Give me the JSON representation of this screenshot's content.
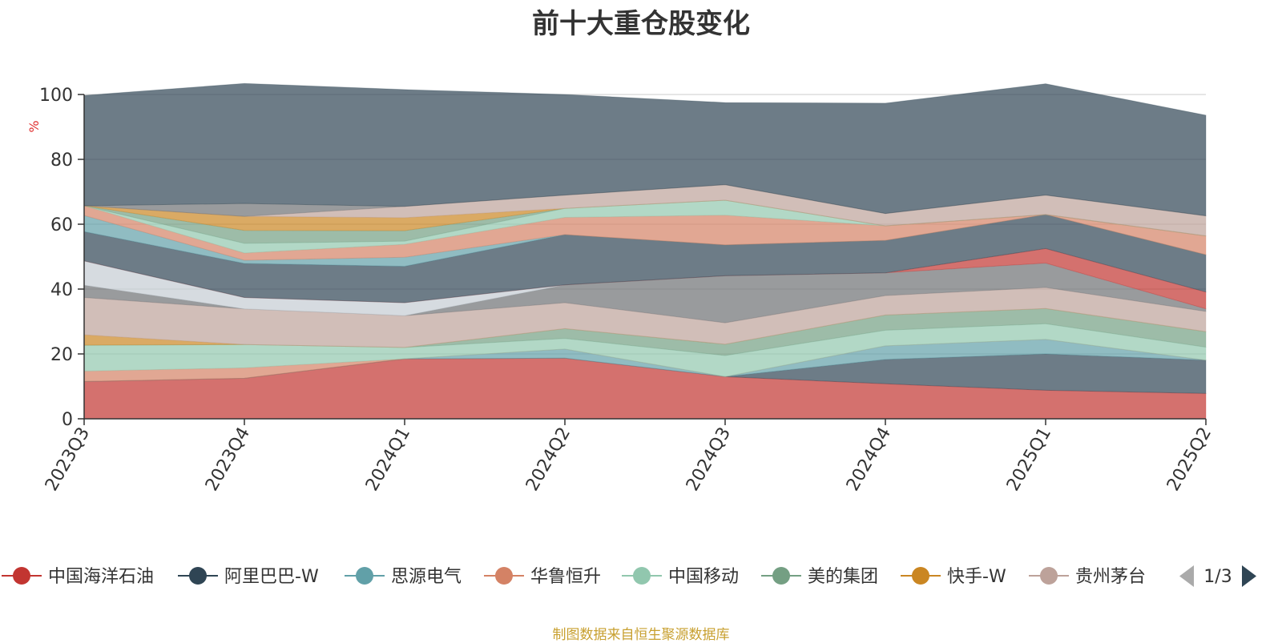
{
  "chart_data": {
    "type": "area",
    "title": "前十大重仓股变化",
    "xlabel": "",
    "ylabel": "%",
    "ylim": [
      0,
      100
    ],
    "yticks": [
      0,
      20,
      40,
      60,
      80,
      100
    ],
    "grid": true,
    "stacked": true,
    "categories": [
      "2023Q3",
      "2023Q4",
      "2024Q1",
      "2024Q2",
      "2024Q3",
      "2024Q4",
      "2025Q1",
      "2025Q2"
    ],
    "series": [
      {
        "name": "中国海洋石油",
        "color": "#c23531",
        "values": [
          11.5,
          12.5,
          18.5,
          18.7,
          13,
          10.8,
          8.8,
          7.8
        ]
      },
      {
        "name": "阿里巴巴-W",
        "color": "#2f4554",
        "values": [
          0,
          0,
          0,
          0,
          0,
          7.5,
          11.2,
          10.3
        ]
      },
      {
        "name": "思源电气",
        "color": "#61a0a8",
        "values": [
          0,
          0,
          0,
          2.8,
          0,
          4.2,
          4.5,
          0
        ]
      },
      {
        "name": "华鲁恒升",
        "color": "#d48265",
        "values": [
          3.2,
          3.2,
          0,
          0,
          0,
          0,
          0,
          0
        ]
      },
      {
        "name": "中国移动",
        "color": "#91c7ae",
        "values": [
          8,
          7.2,
          3.5,
          3.3,
          6.5,
          4.8,
          4.8,
          4
        ]
      },
      {
        "name": "美的集团",
        "color": "#749f83",
        "values": [
          0,
          0,
          0,
          3,
          3.5,
          4.7,
          4.7,
          4.8
        ]
      },
      {
        "name": "快手-W",
        "color": "#ca8622",
        "values": [
          3.2,
          0,
          0,
          0,
          0,
          0,
          0,
          0
        ]
      },
      {
        "name": "贵州茅台",
        "color": "#bda29a",
        "values": [
          11.5,
          11,
          9.8,
          8,
          6.6,
          6,
          6.5,
          6.2
        ]
      },
      {
        "name": "",
        "color": "#6e7074",
        "values": [
          3.8,
          0,
          0,
          5.5,
          14.5,
          7,
          7.5,
          0.8
        ]
      },
      {
        "name": "",
        "color": "#c4ccd3",
        "values": [
          7.5,
          3.5,
          4,
          0,
          0,
          0,
          0,
          0
        ]
      },
      {
        "name": "",
        "color": "#c23531",
        "values": [
          0,
          0,
          0,
          0,
          0,
          0,
          4.5,
          5.2
        ]
      },
      {
        "name": "",
        "color": "#2f4554",
        "values": [
          9,
          10.5,
          11.2,
          15.5,
          9.5,
          10,
          10.5,
          11.5
        ]
      },
      {
        "name": "",
        "color": "#61a0a8",
        "values": [
          5,
          1,
          2.8,
          0,
          0,
          0,
          0,
          0
        ]
      },
      {
        "name": "",
        "color": "#d48265",
        "values": [
          3,
          2.2,
          4,
          5.3,
          9.2,
          4.5,
          0,
          5.8
        ]
      },
      {
        "name": "",
        "color": "#91c7ae",
        "values": [
          0,
          3,
          1,
          2.8,
          4.6,
          0,
          0,
          0
        ]
      },
      {
        "name": "",
        "color": "#749f83",
        "values": [
          0,
          4,
          3.2,
          0,
          0,
          0,
          0,
          0
        ]
      },
      {
        "name": "",
        "color": "#ca8622",
        "values": [
          0,
          4.3,
          4,
          0,
          0,
          0,
          0,
          0
        ]
      },
      {
        "name": "",
        "color": "#bda29a",
        "values": [
          0,
          0,
          3.5,
          4.1,
          4.8,
          3.8,
          6,
          6.2
        ]
      },
      {
        "name": "",
        "color": "#6e7074",
        "values": [
          0,
          4,
          0,
          0,
          0,
          0,
          0,
          0
        ]
      },
      {
        "name": "",
        "color": "#2f4554",
        "values": [
          34,
          37,
          36,
          31,
          25.3,
          34,
          34.3,
          31
        ]
      }
    ],
    "legend": {
      "position": "bottom",
      "items": [
        "中国海洋石油",
        "阿里巴巴-W",
        "思源电气",
        "华鲁恒升",
        "中国移动",
        "美的集团",
        "快手-W",
        "贵州茅台"
      ],
      "colors": [
        "#c23531",
        "#2f4554",
        "#61a0a8",
        "#d48265",
        "#91c7ae",
        "#749f83",
        "#ca8622",
        "#bda29a"
      ],
      "page": "1/3"
    }
  },
  "source_note": "制图数据来自恒生聚源数据库"
}
